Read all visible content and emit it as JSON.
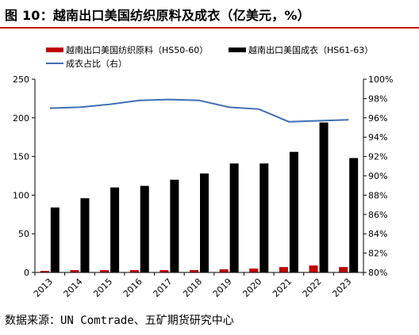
{
  "figure": {
    "title": "图 10：越南出口美国纺织原料及成衣（亿美元，%）",
    "source": "数据来源：UN Comtrade、五矿期货研究中心"
  },
  "colors": {
    "raw_materials": "#c00000",
    "garments": "#000000",
    "ratio": "#3f6fb5",
    "title_rule": "#c00000",
    "axis": "#000000"
  },
  "chart_data": {
    "type": "bar",
    "title": "越南出口美国纺织原料及成衣（亿美元，%）",
    "categories": [
      "2013",
      "2014",
      "2015",
      "2016",
      "2017",
      "2018",
      "2019",
      "2020",
      "2021",
      "2022",
      "2023"
    ],
    "series": [
      {
        "name": "越南出口美国纺织原料（HS50-60）",
        "type": "bar",
        "axis": "left",
        "values": [
          2,
          3,
          3,
          3,
          3,
          3,
          4,
          5,
          7,
          9,
          7
        ]
      },
      {
        "name": "越南出口美国成衣（HS61-63）",
        "type": "bar",
        "axis": "left",
        "values": [
          84,
          96,
          110,
          112,
          120,
          128,
          141,
          141,
          156,
          194,
          148
        ]
      },
      {
        "name": "成衣占比（右）",
        "type": "line",
        "axis": "right",
        "values": [
          97.0,
          97.1,
          97.4,
          97.8,
          97.9,
          97.8,
          97.1,
          96.9,
          95.6,
          95.7,
          95.8
        ]
      }
    ],
    "ylim_left": [
      0,
      250
    ],
    "yticks_left": [
      "0",
      "50",
      "100",
      "150",
      "200",
      "250"
    ],
    "ylim_right": [
      80,
      100
    ],
    "yticks_right": [
      "80%",
      "82%",
      "84%",
      "86%",
      "88%",
      "90%",
      "92%",
      "94%",
      "96%",
      "98%",
      "100%"
    ],
    "grid": false,
    "legend_position": "top-left"
  }
}
